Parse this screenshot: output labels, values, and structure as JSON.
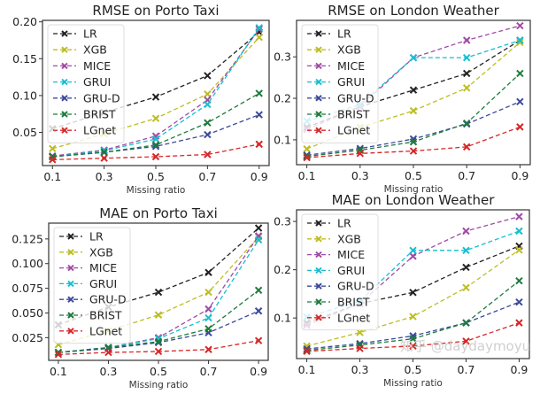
{
  "watermark": "知乎 @daydaymoyu",
  "series_colors": {
    "LR": "#222222",
    "XGB": "#bcbd22",
    "MICE": "#a04aa8",
    "GRUI": "#17becf",
    "GRU-D": "#3b4a9a",
    "BRIST": "#1e7a3c",
    "LGnet": "#d62728"
  },
  "chart_data": [
    {
      "type": "line",
      "title": "RMSE on Porto Taxi",
      "xlabel": "Missing ratio",
      "ylabel": "",
      "x": [
        0.1,
        0.3,
        0.5,
        0.7,
        0.9
      ],
      "xticks": [
        "0.1",
        "0.3",
        "0.5",
        "0.7",
        "0.9"
      ],
      "yticks": [
        0.05,
        0.1,
        0.15,
        0.2
      ],
      "ytick_labels": [
        "0.05",
        "0.10",
        "0.15",
        "0.20"
      ],
      "ylim": [
        0.005,
        0.202
      ],
      "grid": false,
      "legend": "top-left",
      "marker": "x",
      "linestyle": "dashed",
      "series": [
        {
          "name": "LR",
          "values": [
            0.055,
            0.077,
            0.098,
            0.127,
            0.186
          ]
        },
        {
          "name": "XGB",
          "values": [
            0.028,
            0.048,
            0.069,
            0.102,
            0.179
          ]
        },
        {
          "name": "MICE",
          "values": [
            0.018,
            0.026,
            0.045,
            0.094,
            0.19
          ]
        },
        {
          "name": "GRUI",
          "values": [
            0.017,
            0.025,
            0.041,
            0.088,
            0.192
          ]
        },
        {
          "name": "GRU-D",
          "values": [
            0.017,
            0.023,
            0.031,
            0.047,
            0.074
          ]
        },
        {
          "name": "BRIST",
          "values": [
            0.017,
            0.023,
            0.033,
            0.063,
            0.103
          ]
        },
        {
          "name": "LGnet",
          "values": [
            0.013,
            0.015,
            0.017,
            0.02,
            0.034
          ]
        }
      ]
    },
    {
      "type": "line",
      "title": "RMSE on London Weather",
      "xlabel": "Missing ratio",
      "ylabel": "",
      "x": [
        0.1,
        0.3,
        0.5,
        0.7,
        0.9
      ],
      "xticks": [
        "0.1",
        "0.3",
        "0.5",
        "0.7",
        "0.9"
      ],
      "yticks": [
        0.1,
        0.2,
        0.3
      ],
      "ytick_labels": [
        "0.1",
        "0.2",
        "0.3"
      ],
      "ylim": [
        0.04,
        0.388
      ],
      "grid": false,
      "legend": "top-left",
      "marker": "x",
      "linestyle": "dashed",
      "series": [
        {
          "name": "LR",
          "values": [
            0.13,
            0.18,
            0.22,
            0.26,
            0.34
          ]
        },
        {
          "name": "XGB",
          "values": [
            0.078,
            0.13,
            0.17,
            0.225,
            0.335
          ]
        },
        {
          "name": "MICE",
          "values": [
            0.125,
            0.18,
            0.298,
            0.34,
            0.375
          ]
        },
        {
          "name": "GRUI",
          "values": [
            0.145,
            0.185,
            0.298,
            0.298,
            0.34
          ]
        },
        {
          "name": "GRU-D",
          "values": [
            0.063,
            0.079,
            0.102,
            0.138,
            0.192
          ]
        },
        {
          "name": "BRIST",
          "values": [
            0.06,
            0.075,
            0.095,
            0.14,
            0.26
          ]
        },
        {
          "name": "LGnet",
          "values": [
            0.057,
            0.067,
            0.073,
            0.083,
            0.131
          ]
        }
      ]
    },
    {
      "type": "line",
      "title": "MAE on Porto Taxi",
      "xlabel": "Missing ratio",
      "ylabel": "",
      "x": [
        0.1,
        0.3,
        0.5,
        0.7,
        0.9
      ],
      "xticks": [
        "0.1",
        "0.3",
        "0.5",
        "0.7",
        "0.9"
      ],
      "yticks": [
        0.025,
        0.05,
        0.075,
        0.1,
        0.125
      ],
      "ytick_labels": [
        "0.025",
        "0.050",
        "0.075",
        "0.100",
        "0.125"
      ],
      "ylim": [
        0.002,
        0.141
      ],
      "grid": false,
      "legend": "top-left",
      "marker": "x",
      "linestyle": "dashed",
      "series": [
        {
          "name": "LR",
          "values": [
            0.038,
            0.056,
            0.071,
            0.091,
            0.136
          ]
        },
        {
          "name": "XGB",
          "values": [
            0.018,
            0.032,
            0.048,
            0.071,
            0.127
          ]
        },
        {
          "name": "MICE",
          "values": [
            0.01,
            0.015,
            0.025,
            0.054,
            0.128
          ]
        },
        {
          "name": "GRUI",
          "values": [
            0.01,
            0.015,
            0.024,
            0.045,
            0.124
          ]
        },
        {
          "name": "GRU-D",
          "values": [
            0.01,
            0.014,
            0.02,
            0.03,
            0.052
          ]
        },
        {
          "name": "BRIST",
          "values": [
            0.01,
            0.015,
            0.021,
            0.034,
            0.073
          ]
        },
        {
          "name": "LGnet",
          "values": [
            0.008,
            0.01,
            0.011,
            0.013,
            0.022
          ]
        }
      ]
    },
    {
      "type": "line",
      "title": "MAE on London Weather",
      "xlabel": "Missing ratio",
      "ylabel": "",
      "x": [
        0.1,
        0.3,
        0.5,
        0.7,
        0.9
      ],
      "xticks": [
        "0.1",
        "0.3",
        "0.5",
        "0.7",
        "0.9"
      ],
      "yticks": [
        0.1,
        0.2,
        0.3
      ],
      "ytick_labels": [
        "0.1",
        "0.2",
        "0.3"
      ],
      "ylim": [
        0.016,
        0.324
      ],
      "grid": false,
      "legend": "top-left",
      "marker": "x",
      "linestyle": "dashed",
      "series": [
        {
          "name": "LR",
          "values": [
            0.09,
            0.13,
            0.153,
            0.205,
            0.249
          ]
        },
        {
          "name": "XGB",
          "values": [
            0.042,
            0.07,
            0.103,
            0.163,
            0.241
          ]
        },
        {
          "name": "MICE",
          "values": [
            0.085,
            0.13,
            0.228,
            0.28,
            0.31
          ]
        },
        {
          "name": "GRUI",
          "values": [
            0.102,
            0.135,
            0.24,
            0.24,
            0.28
          ]
        },
        {
          "name": "GRU-D",
          "values": [
            0.036,
            0.047,
            0.063,
            0.09,
            0.133
          ]
        },
        {
          "name": "BRIST",
          "values": [
            0.033,
            0.044,
            0.057,
            0.09,
            0.177
          ]
        },
        {
          "name": "LGnet",
          "values": [
            0.031,
            0.037,
            0.042,
            0.052,
            0.09
          ]
        }
      ]
    }
  ]
}
